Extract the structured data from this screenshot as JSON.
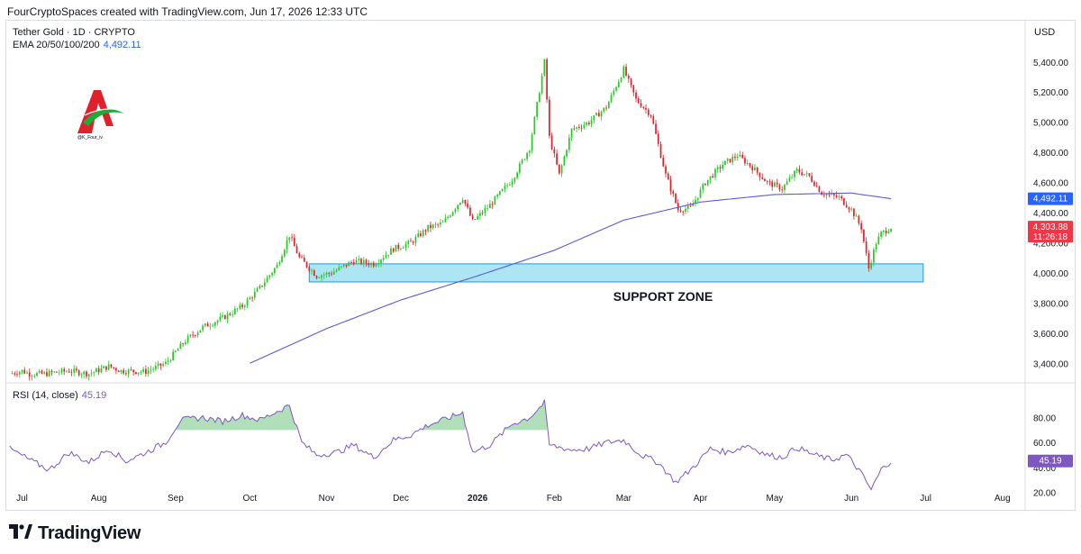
{
  "header": {
    "attribution": "FourCryptoSpaces created with TradingView.com, Jun 17, 2026 12:33 UTC"
  },
  "legend": {
    "symbol": "Tether Gold · 1D · CRYPTO",
    "ema_label": "EMA 20/50/100/200",
    "ema_value": "4,492.11",
    "rsi_label": "RSI (14, close)",
    "rsi_value": "45.19"
  },
  "currency": "USD",
  "logo_caption": "@K_Four_iv",
  "annotation": {
    "support_label": "SUPPORT ZONE"
  },
  "price_badges": {
    "ema": "4,492.11",
    "last": "4,303.88",
    "countdown": "11:26:18",
    "rsi": "45.19"
  },
  "colors": {
    "up": "#26c826",
    "down": "#e0202a",
    "ema": "#5b5bd6",
    "rsi": "#7e57c2",
    "zone": "#7fd8ef",
    "zone_border": "#1e9bd7",
    "badge_blue": "#2962ff",
    "badge_red": "#f23645"
  },
  "footer": {
    "brand": "TradingView"
  },
  "chart_data": [
    {
      "type": "candlestick",
      "title": "Tether Gold · 1D · CRYPTO",
      "x_ticks": [
        "Jul",
        "Aug",
        "Sep",
        "Oct",
        "Nov",
        "Dec",
        "2026",
        "Feb",
        "Mar",
        "Apr",
        "May",
        "Jun",
        "Jul",
        "Aug"
      ],
      "y_ticks": [
        "3,400.00",
        "3,600.00",
        "3,800.00",
        "4,000.00",
        "4,200.00",
        "4,400.00",
        "4,600.00",
        "4,800.00",
        "5,000.00",
        "5,200.00",
        "5,400.00"
      ],
      "ylim": [
        3300,
        5560
      ],
      "series_close_anchors": [
        [
          "2025-06-26",
          3330
        ],
        [
          "2025-07-01",
          3350
        ],
        [
          "2025-07-04",
          3330
        ],
        [
          "2025-07-10",
          3330
        ],
        [
          "2025-07-20",
          3350
        ],
        [
          "2025-07-28",
          3330
        ],
        [
          "2025-08-05",
          3380
        ],
        [
          "2025-08-10",
          3350
        ],
        [
          "2025-08-20",
          3345
        ],
        [
          "2025-08-28",
          3400
        ],
        [
          "2025-09-05",
          3550
        ],
        [
          "2025-09-12",
          3640
        ],
        [
          "2025-09-20",
          3700
        ],
        [
          "2025-09-28",
          3780
        ],
        [
          "2025-10-05",
          3900
        ],
        [
          "2025-10-12",
          4050
        ],
        [
          "2025-10-17",
          4250
        ],
        [
          "2025-10-21",
          4100
        ],
        [
          "2025-10-28",
          3980
        ],
        [
          "2025-11-03",
          4000
        ],
        [
          "2025-11-12",
          4080
        ],
        [
          "2025-11-20",
          4060
        ],
        [
          "2025-11-28",
          4160
        ],
        [
          "2025-12-05",
          4200
        ],
        [
          "2025-12-12",
          4300
        ],
        [
          "2025-12-18",
          4330
        ],
        [
          "2025-12-26",
          4500
        ],
        [
          "2025-12-30",
          4340
        ],
        [
          "2026-01-06",
          4450
        ],
        [
          "2026-01-15",
          4620
        ],
        [
          "2026-01-22",
          4830
        ],
        [
          "2026-01-28",
          5400
        ],
        [
          "2026-01-30",
          4900
        ],
        [
          "2026-02-03",
          4650
        ],
        [
          "2026-02-08",
          4950
        ],
        [
          "2026-02-15",
          5000
        ],
        [
          "2026-02-22",
          5100
        ],
        [
          "2026-03-01",
          5350
        ],
        [
          "2026-03-06",
          5150
        ],
        [
          "2026-03-12",
          5050
        ],
        [
          "2026-03-18",
          4650
        ],
        [
          "2026-03-23",
          4420
        ],
        [
          "2026-03-28",
          4430
        ],
        [
          "2026-04-03",
          4600
        ],
        [
          "2026-04-10",
          4720
        ],
        [
          "2026-04-16",
          4780
        ],
        [
          "2026-04-22",
          4700
        ],
        [
          "2026-04-28",
          4600
        ],
        [
          "2026-05-04",
          4560
        ],
        [
          "2026-05-10",
          4680
        ],
        [
          "2026-05-15",
          4640
        ],
        [
          "2026-05-20",
          4530
        ],
        [
          "2026-05-27",
          4500
        ],
        [
          "2026-06-01",
          4420
        ],
        [
          "2026-06-05",
          4300
        ],
        [
          "2026-06-08",
          4030
        ],
        [
          "2026-06-11",
          4200
        ],
        [
          "2026-06-13",
          4260
        ],
        [
          "2026-06-17",
          4303.88
        ]
      ],
      "ema200_anchors": [
        [
          "2025-10-01",
          3400
        ],
        [
          "2025-11-01",
          3630
        ],
        [
          "2025-12-01",
          3820
        ],
        [
          "2026-01-01",
          3980
        ],
        [
          "2026-02-01",
          4150
        ],
        [
          "2026-03-01",
          4350
        ],
        [
          "2026-04-01",
          4470
        ],
        [
          "2026-05-01",
          4520
        ],
        [
          "2026-06-01",
          4530
        ],
        [
          "2026-06-17",
          4492.11
        ]
      ],
      "support_zone": [
        3940,
        4060
      ],
      "last_price": 4303.88,
      "ema_last": 4492.11
    },
    {
      "type": "line",
      "title": "RSI (14, close)",
      "y_ticks": [
        "20.00",
        "40.00",
        "60.00",
        "80.00"
      ],
      "ylim": [
        16,
        100
      ],
      "overbought": 70,
      "oversold": 30,
      "rsi_anchors": [
        [
          "2025-06-26",
          55
        ],
        [
          "2025-07-05",
          45
        ],
        [
          "2025-07-12",
          38
        ],
        [
          "2025-07-20",
          52
        ],
        [
          "2025-07-28",
          44
        ],
        [
          "2025-08-05",
          55
        ],
        [
          "2025-08-12",
          45
        ],
        [
          "2025-08-20",
          52
        ],
        [
          "2025-08-28",
          60
        ],
        [
          "2025-09-03",
          78
        ],
        [
          "2025-09-12",
          80
        ],
        [
          "2025-09-20",
          77
        ],
        [
          "2025-09-28",
          82
        ],
        [
          "2025-10-05",
          78
        ],
        [
          "2025-10-12",
          85
        ],
        [
          "2025-10-17",
          90
        ],
        [
          "2025-10-22",
          60
        ],
        [
          "2025-10-28",
          50
        ],
        [
          "2025-11-05",
          52
        ],
        [
          "2025-11-12",
          58
        ],
        [
          "2025-11-20",
          48
        ],
        [
          "2025-11-28",
          62
        ],
        [
          "2025-12-05",
          66
        ],
        [
          "2025-12-12",
          74
        ],
        [
          "2025-12-18",
          78
        ],
        [
          "2025-12-26",
          84
        ],
        [
          "2025-12-30",
          52
        ],
        [
          "2026-01-06",
          58
        ],
        [
          "2026-01-15",
          75
        ],
        [
          "2026-01-22",
          80
        ],
        [
          "2026-01-28",
          92
        ],
        [
          "2026-01-30",
          58
        ],
        [
          "2026-02-08",
          54
        ],
        [
          "2026-02-15",
          55
        ],
        [
          "2026-02-22",
          60
        ],
        [
          "2026-03-01",
          62
        ],
        [
          "2026-03-08",
          50
        ],
        [
          "2026-03-15",
          44
        ],
        [
          "2026-03-22",
          28
        ],
        [
          "2026-03-28",
          38
        ],
        [
          "2026-04-05",
          55
        ],
        [
          "2026-04-12",
          52
        ],
        [
          "2026-04-20",
          58
        ],
        [
          "2026-04-28",
          50
        ],
        [
          "2026-05-04",
          48
        ],
        [
          "2026-05-10",
          56
        ],
        [
          "2026-05-17",
          50
        ],
        [
          "2026-05-24",
          46
        ],
        [
          "2026-05-30",
          50
        ],
        [
          "2026-06-04",
          38
        ],
        [
          "2026-06-09",
          22
        ],
        [
          "2026-06-13",
          38
        ],
        [
          "2026-06-17",
          45.19
        ]
      ],
      "last_value": 45.19
    }
  ]
}
